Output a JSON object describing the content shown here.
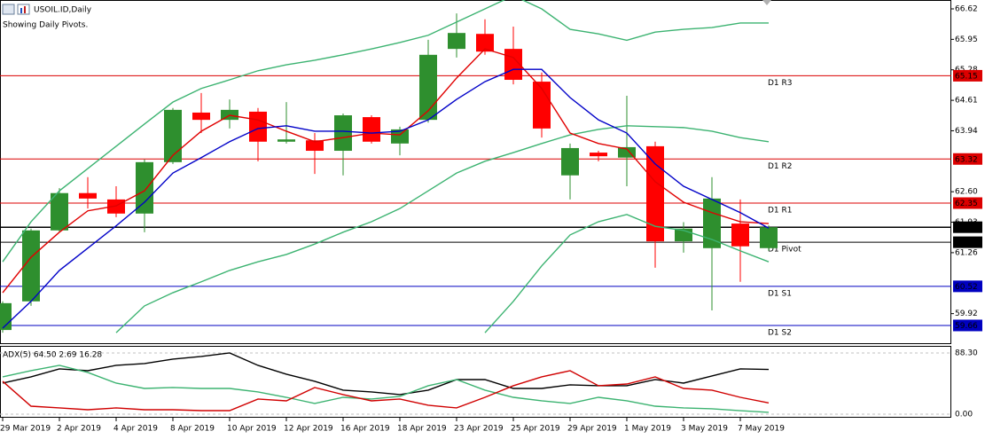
{
  "chart_data": [
    {
      "type": "candlestick",
      "title": "USOIL.ID,Daily",
      "subtitle": "Showing Daily Pivots.",
      "categories": [
        "29 Mar 2019",
        null,
        "2 Apr 2019",
        null,
        "4 Apr 2019",
        null,
        "8 Apr 2019",
        null,
        "10 Apr 2019",
        null,
        "12 Apr 2019",
        null,
        "16 Apr 2019",
        null,
        "18 Apr 2019",
        null,
        "23 Apr 2019",
        null,
        "25 Apr 2019",
        null,
        "29 Apr 2019",
        null,
        "1 May 2019",
        null,
        "3 May 2019",
        null,
        "7 May 2019",
        null
      ],
      "open": [
        59.56,
        60.19,
        61.75,
        62.57,
        62.43,
        62.12,
        63.25,
        64.34,
        64.18,
        64.36,
        63.7,
        63.73,
        63.5,
        64.24,
        63.66,
        64.18,
        65.74,
        66.07,
        65.74,
        65.02,
        62.96,
        63.46,
        63.35,
        63.6,
        61.51,
        61.36,
        61.9,
        61.36
      ],
      "high": [
        60.19,
        61.79,
        62.68,
        62.92,
        62.72,
        63.31,
        64.44,
        64.77,
        64.63,
        64.44,
        64.57,
        63.89,
        64.32,
        64.28,
        64.03,
        65.94,
        66.52,
        66.39,
        66.23,
        65.22,
        63.66,
        63.5,
        64.71,
        63.7,
        61.93,
        62.92,
        62.43,
        61.86
      ],
      "low": [
        59.5,
        60.09,
        61.71,
        62.23,
        62.04,
        61.71,
        63.21,
        63.89,
        63.99,
        63.27,
        63.66,
        62.99,
        62.96,
        63.66,
        63.4,
        64.12,
        65.55,
        65.61,
        64.96,
        63.79,
        62.43,
        63.27,
        62.72,
        60.93,
        61.26,
        59.99,
        60.62,
        61.3
      ],
      "close": [
        60.15,
        61.75,
        62.57,
        62.45,
        62.12,
        63.25,
        64.4,
        64.18,
        64.4,
        63.7,
        63.75,
        63.5,
        64.28,
        63.7,
        63.97,
        65.61,
        66.09,
        65.68,
        65.06,
        63.99,
        63.56,
        63.38,
        63.58,
        61.51,
        61.79,
        62.45,
        61.4,
        61.82
      ],
      "up_color": "#2e8f2e",
      "down_color": "#ff0000",
      "series": [
        {
          "color": "#3cb371",
          "values": [
            61.06,
            61.94,
            62.62,
            63.11,
            63.6,
            64.09,
            64.57,
            64.87,
            65.06,
            65.26,
            65.39,
            65.49,
            65.61,
            65.74,
            65.88,
            66.04,
            66.33,
            66.62,
            66.91,
            66.62,
            66.17,
            66.07,
            65.93,
            66.11,
            66.17,
            66.21,
            66.31,
            66.31
          ]
        },
        {
          "color": "#3cb371",
          "values": [
            null,
            null,
            null,
            null,
            59.5,
            60.09,
            60.38,
            60.62,
            60.87,
            61.06,
            61.22,
            61.45,
            61.71,
            61.94,
            62.23,
            62.62,
            63.01,
            63.27,
            63.46,
            63.66,
            63.85,
            63.97,
            64.05,
            64.03,
            64.01,
            63.93,
            63.79,
            63.7
          ]
        },
        {
          "color": "#3cb371",
          "values": [
            null,
            null,
            null,
            null,
            null,
            null,
            null,
            null,
            null,
            null,
            null,
            null,
            null,
            null,
            null,
            null,
            null,
            59.5,
            60.19,
            60.97,
            61.65,
            61.94,
            62.1,
            61.84,
            61.75,
            61.55,
            61.3,
            61.06
          ]
        },
        {
          "color": "#e00000",
          "values": [
            60.38,
            61.16,
            61.71,
            62.18,
            62.29,
            62.62,
            63.4,
            63.93,
            64.28,
            64.18,
            63.93,
            63.7,
            63.79,
            63.89,
            63.85,
            64.38,
            65.1,
            65.74,
            65.55,
            64.87,
            63.89,
            63.66,
            63.54,
            62.82,
            62.37,
            62.14,
            61.94,
            61.9
          ]
        },
        {
          "color": "#0000c8",
          "values": [
            59.6,
            60.19,
            60.87,
            61.36,
            61.85,
            62.37,
            63.01,
            63.35,
            63.7,
            63.99,
            64.05,
            63.93,
            63.93,
            63.89,
            63.93,
            64.18,
            64.63,
            65.02,
            65.29,
            65.29,
            64.67,
            64.18,
            63.89,
            63.21,
            62.72,
            62.43,
            62.14,
            61.8
          ]
        }
      ],
      "pivots": [
        {
          "name": "D1 R3",
          "value": 65.15,
          "color": "#dc0000"
        },
        {
          "name": "D1 R2",
          "value": 63.32,
          "color": "#dc0000"
        },
        {
          "name": "D1 R1",
          "value": 62.35,
          "color": "#dc0000"
        },
        {
          "name": "D1 Pivot",
          "value": 61.49,
          "color": "#000000"
        },
        {
          "name": "D1 S1",
          "value": 60.52,
          "color": "#0000c0"
        },
        {
          "name": "D1 S2",
          "value": 59.66,
          "color": "#0000c0"
        }
      ],
      "last_price": {
        "value": 61.82,
        "color": "#000000"
      },
      "ylim": [
        59.25,
        66.815
      ],
      "yticks": [
        66.62,
        65.95,
        65.28,
        64.61,
        63.94,
        {
          "value": 62.6,
          "label": "62.60"
        },
        61.93,
        61.26,
        59.92
      ]
    },
    {
      "type": "line",
      "title": "ADX(5) 64.50 2.69 16.28",
      "series": [
        {
          "color": "#000000",
          "values": [
            44.8,
            53.8,
            65.3,
            62.7,
            70.4,
            73.0,
            79.4,
            83.2,
            88.3,
            70.4,
            57.6,
            47.4,
            34.6,
            32.0,
            28.2,
            34.6,
            49.9,
            49.9,
            37.1,
            37.1,
            42.3,
            41.0,
            41.0,
            49.9,
            44.8,
            55.1,
            65.3,
            64.5
          ]
        },
        {
          "color": "#3cb371",
          "values": [
            53.8,
            62.7,
            70.4,
            60.2,
            44.8,
            37.1,
            38.4,
            37.1,
            37.1,
            32.0,
            24.3,
            15.4,
            24.3,
            21.8,
            25.6,
            41.0,
            49.9,
            34.6,
            24.3,
            19.2,
            15.4,
            24.3,
            19.2,
            11.5,
            9.0,
            7.7,
            5.1,
            2.69
          ]
        },
        {
          "color": "#d00000",
          "values": [
            47.4,
            11.5,
            9.0,
            6.4,
            9.0,
            6.4,
            6.4,
            5.1,
            5.1,
            21.8,
            19.2,
            38.4,
            28.2,
            19.2,
            21.8,
            12.8,
            9.0,
            24.3,
            41.0,
            53.8,
            62.7,
            41.0,
            43.5,
            53.8,
            37.1,
            34.6,
            24.3,
            16.28
          ]
        }
      ],
      "ylim": [
        -3.84,
        98.5
      ],
      "yticks": [
        {
          "value": 88.3,
          "label": "88.30"
        },
        {
          "value": 0,
          "label": "0.00"
        }
      ]
    }
  ]
}
